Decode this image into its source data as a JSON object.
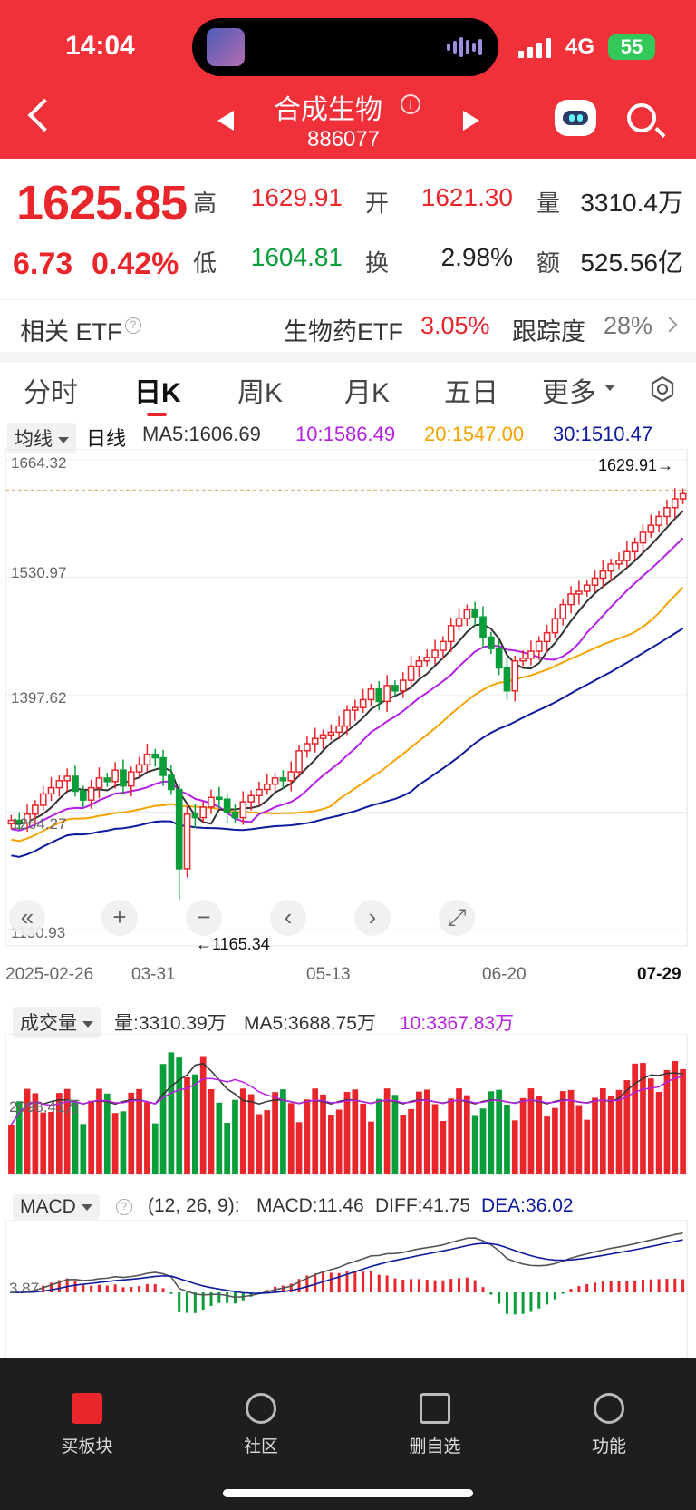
{
  "status_bar": {
    "time": "14:04",
    "network": "4G",
    "battery": "55"
  },
  "header": {
    "title": "合成生物",
    "code": "886077"
  },
  "quote": {
    "price": "1625.85",
    "change": "6.73",
    "change_pct": "0.42%",
    "high_label": "高",
    "high": "1629.91",
    "low_label": "低",
    "low": "1604.81",
    "open_label": "开",
    "open": "1621.30",
    "turnover_label": "换",
    "turnover": "2.98%",
    "volume_label": "量",
    "volume": "3310.4万",
    "amount_label": "额",
    "amount": "525.56亿"
  },
  "etf": {
    "label": "相关 ETF",
    "name": "生物药ETF",
    "change": "3.05%",
    "track_label": "跟踪度",
    "track_value": "28%"
  },
  "tabs": [
    "分时",
    "日K",
    "周K",
    "月K",
    "五日",
    "更多"
  ],
  "active_tab": "日K",
  "ma_bar": {
    "selector": "均线",
    "period": "日线",
    "ma5": "MA5:1606.69",
    "ma10": "10:1586.49",
    "ma20": "20:1547.00",
    "ma30": "30:1510.47"
  },
  "colors": {
    "up": "#e8262c",
    "down": "#0a9e3a",
    "ma5": "#333333",
    "ma10": "#b51fe6",
    "ma20": "#f5a300",
    "ma30": "#0d1a9e",
    "header": "#f0313a"
  },
  "price_axis": [
    "1664.32",
    "1530.97",
    "1397.62",
    "1264.27",
    "1130.93"
  ],
  "high_marker": "1629.91→",
  "low_marker": "←1165.34",
  "dates": [
    "2025-02-26",
    "03-31",
    "05-13",
    "06-20",
    "07-29"
  ],
  "volume_bar": {
    "selector": "成交量",
    "vol": "量:3310.39万",
    "ma5": "MA5:3688.75万",
    "ma10": "10:3367.83万",
    "axis": "2098.41万"
  },
  "macd_bar": {
    "selector": "MACD",
    "params": "(12, 26, 9):",
    "macd": "MACD:11.46",
    "diff": "DIFF:41.75",
    "dea": "DEA:36.02",
    "axis": "3.87"
  },
  "controls": [
    "«",
    "+",
    "−",
    "‹",
    "›",
    "⤢"
  ],
  "bottom_nav": [
    {
      "label": "买板块",
      "icon": "buy-icon"
    },
    {
      "label": "社区",
      "icon": "community-icon"
    },
    {
      "label": "删自选",
      "icon": "remove-watchlist-icon"
    },
    {
      "label": "功能",
      "icon": "menu-icon"
    }
  ],
  "chart_data": {
    "type": "candlestick",
    "x_range": [
      "2025-02-26",
      "2025-07-29"
    ],
    "y_range": [
      1130.93,
      1664.32
    ],
    "y_ticks": [
      1664.32,
      1530.97,
      1397.62,
      1264.27,
      1130.93
    ],
    "period_high": 1629.91,
    "period_low": 1165.34,
    "series": [
      {
        "name": "MA5",
        "last": 1606.69
      },
      {
        "name": "MA10",
        "last": 1586.49
      },
      {
        "name": "MA20",
        "last": 1547.0
      },
      {
        "name": "MA30",
        "last": 1510.47
      }
    ],
    "close_trend": [
      1255,
      1252,
      1262,
      1272,
      1285,
      1292,
      1300,
      1305,
      1288,
      1278,
      1292,
      1303,
      1299,
      1312,
      1294,
      1310,
      1318,
      1330,
      1326,
      1306,
      1290,
      1200,
      1262,
      1258,
      1270,
      1281,
      1279,
      1264,
      1258,
      1276,
      1283,
      1290,
      1296,
      1303,
      1300,
      1310,
      1334,
      1342,
      1348,
      1352,
      1355,
      1362,
      1380,
      1383,
      1392,
      1404,
      1390,
      1408,
      1402,
      1414,
      1430,
      1436,
      1440,
      1448,
      1458,
      1476,
      1484,
      1494,
      1486,
      1463,
      1450,
      1428,
      1402,
      1436,
      1439,
      1447,
      1458,
      1468,
      1484,
      1500,
      1512,
      1515,
      1522,
      1530,
      1538,
      1546,
      1550,
      1560,
      1570,
      1582,
      1590,
      1600,
      1610,
      1620,
      1625.85
    ]
  }
}
